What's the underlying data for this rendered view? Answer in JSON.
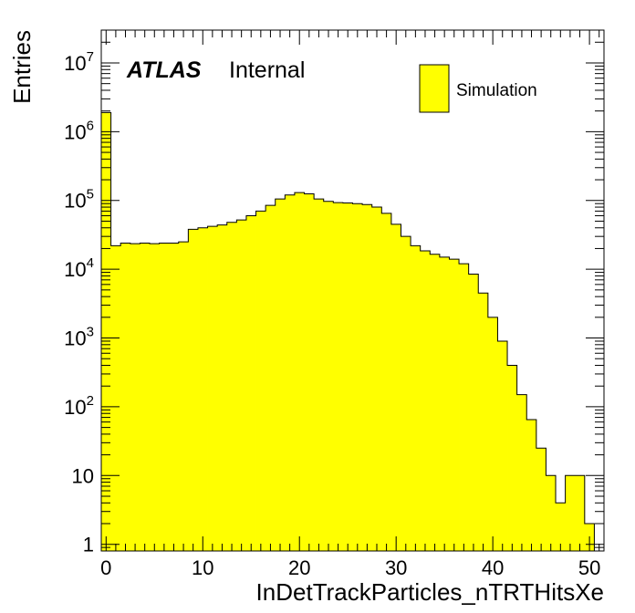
{
  "chart_data": {
    "type": "bar",
    "xlabel": "InDetTrackParticles_nTRTHitsXe",
    "ylabel": "Entries",
    "yscale": "log",
    "xlim": [
      -0.5,
      51.5
    ],
    "ylim": [
      0.8,
      30000000
    ],
    "x_ticks": [
      "0",
      "10",
      "20",
      "30",
      "40",
      "50"
    ],
    "y_ticks": [
      {
        "base": "1",
        "exp": ""
      },
      {
        "base": "10",
        "exp": ""
      },
      {
        "base": "10",
        "exp": "2"
      },
      {
        "base": "10",
        "exp": "3"
      },
      {
        "base": "10",
        "exp": "4"
      },
      {
        "base": "10",
        "exp": "5"
      },
      {
        "base": "10",
        "exp": "6"
      },
      {
        "base": "10",
        "exp": "7"
      }
    ],
    "annotation": {
      "atlas": "ATLAS",
      "internal": "Internal"
    },
    "legend_position": "top-right",
    "fill_color": "#ffff00",
    "line_color": "#000000",
    "series": [
      {
        "name": "Simulation",
        "bin_edges_start": -0.5,
        "bin_width": 1,
        "values": [
          1900000,
          22000,
          24000,
          23500,
          24000,
          23500,
          24000,
          24000,
          25000,
          38000,
          40000,
          42000,
          44000,
          48000,
          52000,
          60000,
          70000,
          85000,
          105000,
          120000,
          130000,
          125000,
          105000,
          97000,
          93000,
          92000,
          90000,
          87000,
          80000,
          65000,
          45000,
          30000,
          22000,
          18500,
          16500,
          15000,
          14000,
          12000,
          8500,
          4500,
          2000,
          900,
          400,
          150,
          65,
          25,
          10,
          4,
          10,
          10,
          2
        ]
      }
    ]
  }
}
